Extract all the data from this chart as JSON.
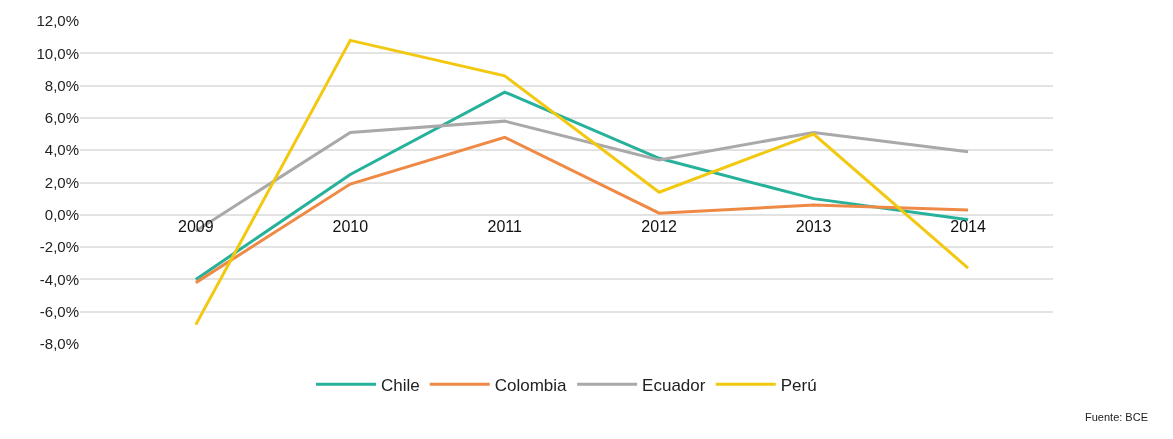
{
  "chart_data": {
    "type": "line",
    "categories": [
      "2009",
      "2010",
      "2011",
      "2012",
      "2013",
      "2014"
    ],
    "series": [
      {
        "name": "Chile",
        "color": "#26b29a",
        "values": [
          -4.0,
          2.5,
          7.6,
          3.5,
          1.0,
          -0.3
        ]
      },
      {
        "name": "Colombia",
        "color": "#ee8a45",
        "values": [
          -4.2,
          1.9,
          4.8,
          0.1,
          0.6,
          0.3
        ]
      },
      {
        "name": "Ecuador",
        "color": "#a9a9a9",
        "values": [
          -1.0,
          5.1,
          5.8,
          3.4,
          5.1,
          3.9
        ]
      },
      {
        "name": "Perú",
        "color": "#f2c811",
        "values": [
          -6.8,
          10.8,
          8.6,
          1.4,
          5.0,
          -3.3
        ]
      }
    ],
    "ylim": [
      -8,
      12
    ],
    "yticks": [
      {
        "value": -8,
        "label": "-8,0%"
      },
      {
        "value": -6,
        "label": "-6,0%"
      },
      {
        "value": -4,
        "label": "-4,0%"
      },
      {
        "value": -2,
        "label": "-2,0%"
      },
      {
        "value": 0,
        "label": "0,0%"
      },
      {
        "value": 2,
        "label": "2,0%"
      },
      {
        "value": 4,
        "label": "4,0%"
      },
      {
        "value": 6,
        "label": "6,0%"
      },
      {
        "value": 8,
        "label": "8,0%"
      },
      {
        "value": 10,
        "label": "10,0%"
      },
      {
        "value": 12,
        "label": "12,0%"
      }
    ],
    "grid": "y",
    "legend": "bottom",
    "marker": "none",
    "line_style": "solid",
    "annotations": [
      "Fuente: BCE"
    ]
  }
}
